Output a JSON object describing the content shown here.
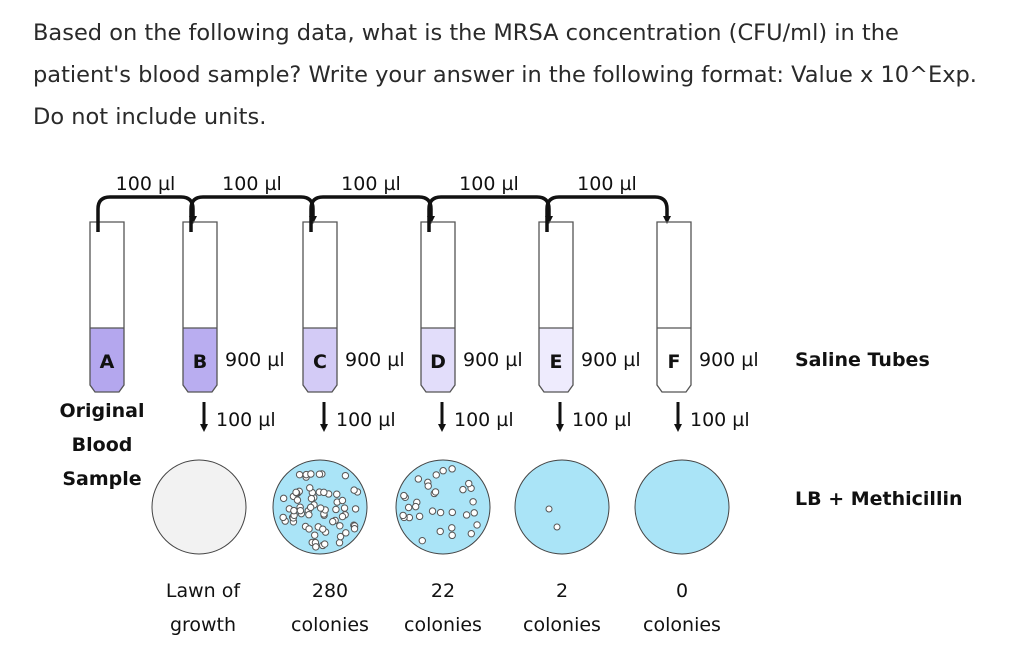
{
  "question": "Based on the following data, what is the MRSA concentration (CFU/ml) in the patient's blood sample? Write your answer in the following format: Value x 10^Exp. Do not include units.",
  "diagram": {
    "transfer_labels": [
      "100 µl",
      "100 µl",
      "100 µl",
      "100 µl",
      "100 µl"
    ],
    "tubes": [
      {
        "letter": "A",
        "volume": "",
        "fill": "#b4a7ee"
      },
      {
        "letter": "B",
        "volume": "900 µl",
        "fill": "#b9adf0"
      },
      {
        "letter": "C",
        "volume": "900 µl",
        "fill": "#d3cbf6"
      },
      {
        "letter": "D",
        "volume": "900 µl",
        "fill": "#e2ddfa"
      },
      {
        "letter": "E",
        "volume": "900 µl",
        "fill": "#eeebfd"
      },
      {
        "letter": "F",
        "volume": "900 µl",
        "fill": "#ffffff"
      }
    ],
    "original_label": [
      "Original",
      "Blood",
      "Sample"
    ],
    "saline_label": "Saline Tubes",
    "plating_labels": [
      "100 µl",
      "100 µl",
      "100 µl",
      "100 µl",
      "100 µl"
    ],
    "medium_label": "LB + Methicillin",
    "plates": [
      {
        "line1": "Lawn of",
        "line2": "growth",
        "color": "#f2f2f2"
      },
      {
        "line1": "280",
        "line2": "colonies",
        "color": "#aae4f7"
      },
      {
        "line1": "22",
        "line2": "colonies",
        "color": "#aae4f7"
      },
      {
        "line1": "2",
        "line2": "colonies",
        "color": "#aae4f7"
      },
      {
        "line1": "0",
        "line2": "colonies",
        "color": "#aae4f7"
      }
    ]
  }
}
